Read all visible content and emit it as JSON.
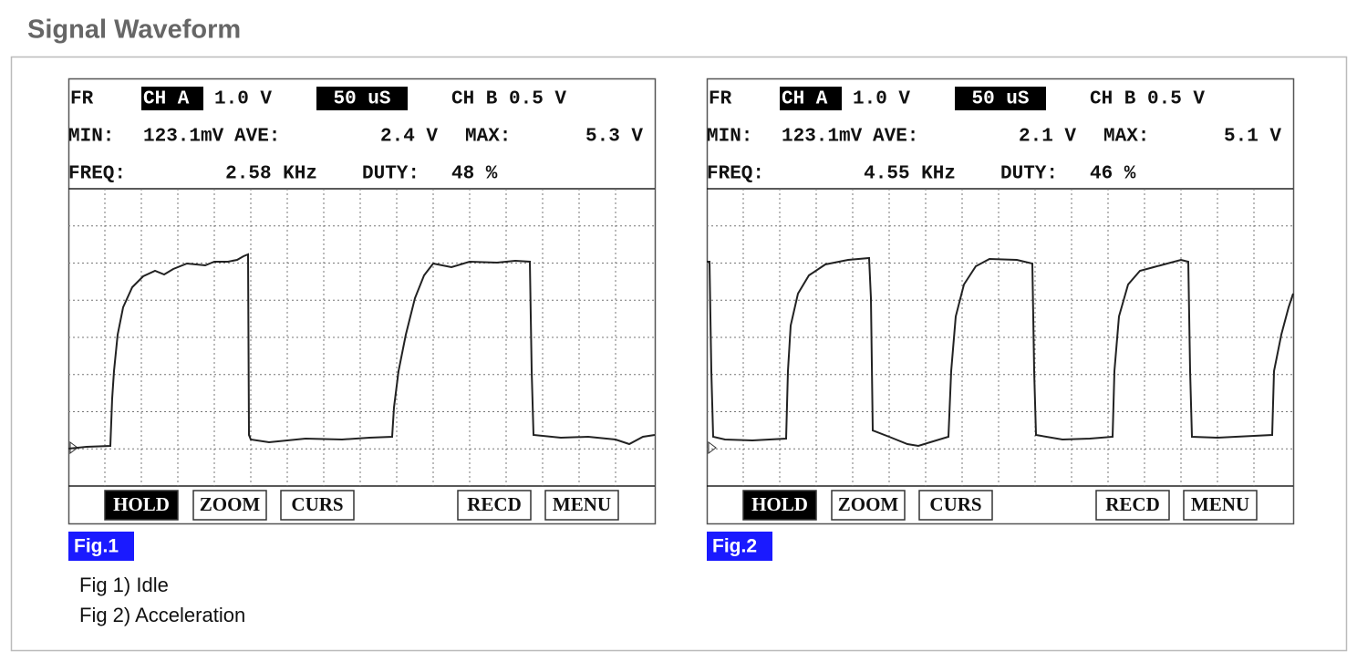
{
  "title": "Signal Waveform",
  "figures": [
    {
      "header": {
        "mode": "FR",
        "channel_a": "CH A",
        "channel_a_scale": "1.0 V",
        "timebase": "50 uS",
        "channel_b": "CH B 0.5 V",
        "min_label": "MIN:",
        "min_value": "123.1mV",
        "ave_label": "AVE:",
        "ave_value": "2.4 V",
        "max_label": "MAX:",
        "max_value": "5.3 V",
        "freq_label": "FREQ:",
        "freq_value": "2.58 KHz",
        "duty_label": "DUTY:",
        "duty_value": "48 %"
      },
      "buttons": [
        "HOLD",
        "ZOOM",
        "CURS",
        "RECD",
        "MENU"
      ],
      "label": "Fig.1"
    },
    {
      "header": {
        "mode": "FR",
        "channel_a": "CH A",
        "channel_a_scale": "1.0 V",
        "timebase": "50 uS",
        "channel_b": "CH B 0.5 V",
        "min_label": "MIN:",
        "min_value": "123.1mV",
        "ave_label": "AVE:",
        "ave_value": "2.1 V",
        "max_label": "MAX:",
        "max_value": "5.1 V",
        "freq_label": "FREQ:",
        "freq_value": "4.55 KHz",
        "duty_label": "DUTY:",
        "duty_value": "46 %"
      },
      "buttons": [
        "HOLD",
        "ZOOM",
        "CURS",
        "RECD",
        "MENU"
      ],
      "label": "Fig.2"
    }
  ],
  "notes": [
    "Fig 1) Idle",
    "Fig 2) Acceleration"
  ]
}
